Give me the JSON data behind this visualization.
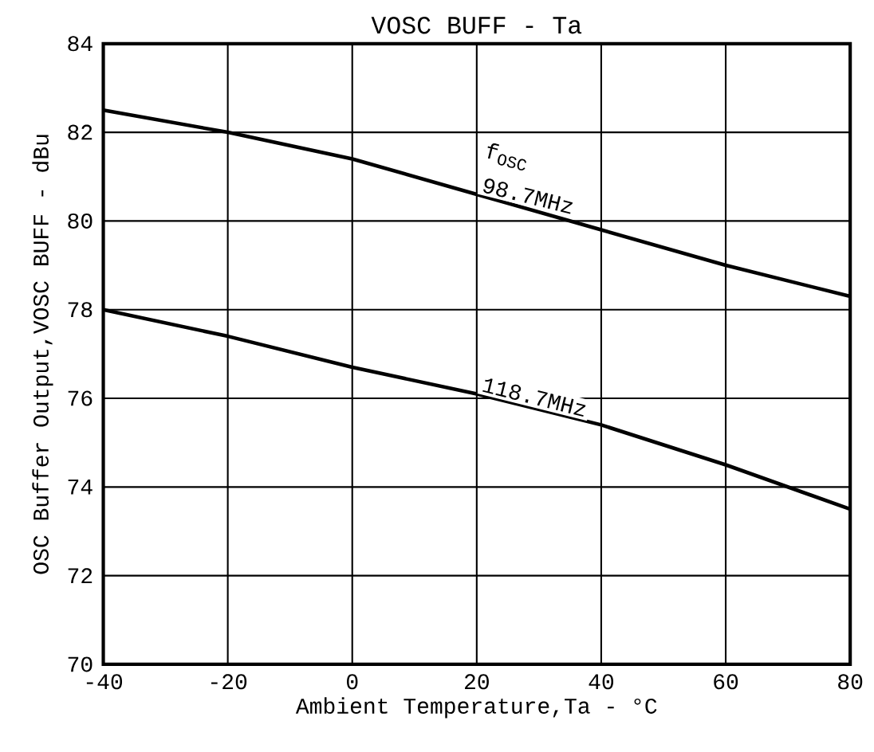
{
  "chart_data": {
    "type": "line",
    "title": "VOSC BUFF - Ta",
    "xlabel": "Ambient Temperature,Ta - °C",
    "ylabel": "OSC Buffer Output,VOSC BUFF - dBu",
    "annotations": [
      "f$_{OSC}$"
    ],
    "x": [
      -40,
      -20,
      0,
      20,
      40,
      60,
      80
    ],
    "series": [
      {
        "name": "98.7MHz",
        "color": "#000000",
        "values": [
          82.5,
          82.0,
          81.4,
          80.6,
          79.8,
          79.0,
          78.3
        ]
      },
      {
        "name": "118.7MHz",
        "color": "#000000",
        "values": [
          78.0,
          77.4,
          76.7,
          76.1,
          75.4,
          74.5,
          73.5
        ]
      }
    ],
    "xlim": [
      -40,
      80
    ],
    "ylim": [
      70,
      84
    ],
    "xticks": [
      -40,
      -20,
      0,
      20,
      40,
      60,
      80
    ],
    "yticks": [
      70,
      72,
      74,
      76,
      78,
      80,
      82,
      84
    ],
    "grid": true,
    "marker": "none",
    "line_style": "solid"
  }
}
